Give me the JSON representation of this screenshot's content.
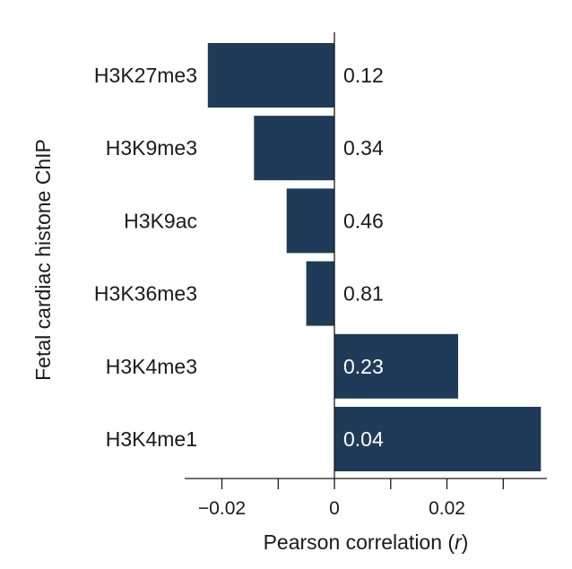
{
  "chart_data": {
    "type": "bar",
    "orientation": "horizontal",
    "categories": [
      "H3K27me3",
      "H3K9me3",
      "H3K9ac",
      "H3K36me3",
      "H3K4me3",
      "H3K4me1"
    ],
    "values": [
      -0.0225,
      -0.0143,
      -0.0085,
      -0.005,
      0.022,
      0.0367
    ],
    "value_labels": [
      "0.12",
      "0.34",
      "0.46",
      "0.81",
      "0.23",
      "0.04"
    ],
    "xlabel_main": "Pearson correlation (",
    "xlabel_var": "r",
    "xlabel_close": ")",
    "ylabel": "Fetal cardiac histone ChIP",
    "xlim": [
      -0.027,
      0.037
    ],
    "xticks": [
      -0.02,
      -0.01,
      0,
      0.01,
      0.02,
      0.03
    ],
    "xtick_labels": [
      "−0.02",
      "",
      "0",
      "",
      "0.02",
      ""
    ],
    "colors": {
      "bar": "#1f3b5a",
      "axis": "#1a1a1a",
      "label_on_bar": "#ffffff",
      "label_off_bar": "#1a1a1a"
    }
  }
}
